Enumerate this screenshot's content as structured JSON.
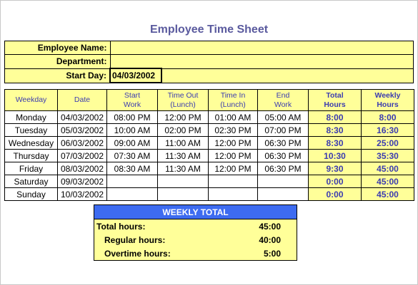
{
  "title": "Employee Time Sheet",
  "info": {
    "employee_name_label": "Employee Name:",
    "employee_name_value": "",
    "department_label": "Department:",
    "department_value": "",
    "start_day_label": "Start Day:",
    "start_day_value": "04/03/2002"
  },
  "columns": {
    "weekday": "Weekday",
    "date": "Date",
    "start_work": [
      "Start",
      "Work"
    ],
    "time_out": [
      "Time Out",
      "(Lunch)"
    ],
    "time_in": [
      "Time In",
      "(Lunch)"
    ],
    "end_work": [
      "End",
      "Work"
    ],
    "total_hours": [
      "Total",
      "Hours"
    ],
    "weekly_hours": [
      "Weekly",
      "Hours"
    ]
  },
  "rows": [
    {
      "weekday": "Monday",
      "date": "04/03/2002",
      "start": "08:00 PM",
      "out": "12:00 PM",
      "in": "01:00 AM",
      "end": "05:00 AM",
      "total": "8:00",
      "weekly": "8:00"
    },
    {
      "weekday": "Tuesday",
      "date": "05/03/2002",
      "start": "10:00 AM",
      "out": "02:00 PM",
      "in": "02:30 PM",
      "end": "07:00 PM",
      "total": "8:30",
      "weekly": "16:30"
    },
    {
      "weekday": "Wednesday",
      "date": "06/03/2002",
      "start": "09:00 AM",
      "out": "11:00 AM",
      "in": "12:00 PM",
      "end": "06:30 PM",
      "total": "8:30",
      "weekly": "25:00"
    },
    {
      "weekday": "Thursday",
      "date": "07/03/2002",
      "start": "07:30 AM",
      "out": "11:30 AM",
      "in": "12:00 PM",
      "end": "06:30 PM",
      "total": "10:30",
      "weekly": "35:30"
    },
    {
      "weekday": "Friday",
      "date": "08/03/2002",
      "start": "08:30 AM",
      "out": "11:30 AM",
      "in": "12:00 PM",
      "end": "06:30 PM",
      "total": "9:30",
      "weekly": "45:00"
    },
    {
      "weekday": "Saturday",
      "date": "09/03/2002",
      "start": "",
      "out": "",
      "in": "",
      "end": "",
      "total": "0:00",
      "weekly": "45:00"
    },
    {
      "weekday": "Sunday",
      "date": "10/03/2002",
      "start": "",
      "out": "",
      "in": "",
      "end": "",
      "total": "0:00",
      "weekly": "45:00"
    }
  ],
  "weekly_total": {
    "heading": "WEEKLY TOTAL",
    "total_label": "Total hours:",
    "total_value": "45:00",
    "regular_label": "Regular hours:",
    "regular_value": "40:00",
    "overtime_label": "Overtime hours:",
    "overtime_value": "5:00"
  },
  "colors": {
    "cell_fill": "#ffff99",
    "header_text": "#3b3bb0",
    "title_text": "#5a5a9e",
    "weekly_total_fill": "#3d6bf0"
  }
}
